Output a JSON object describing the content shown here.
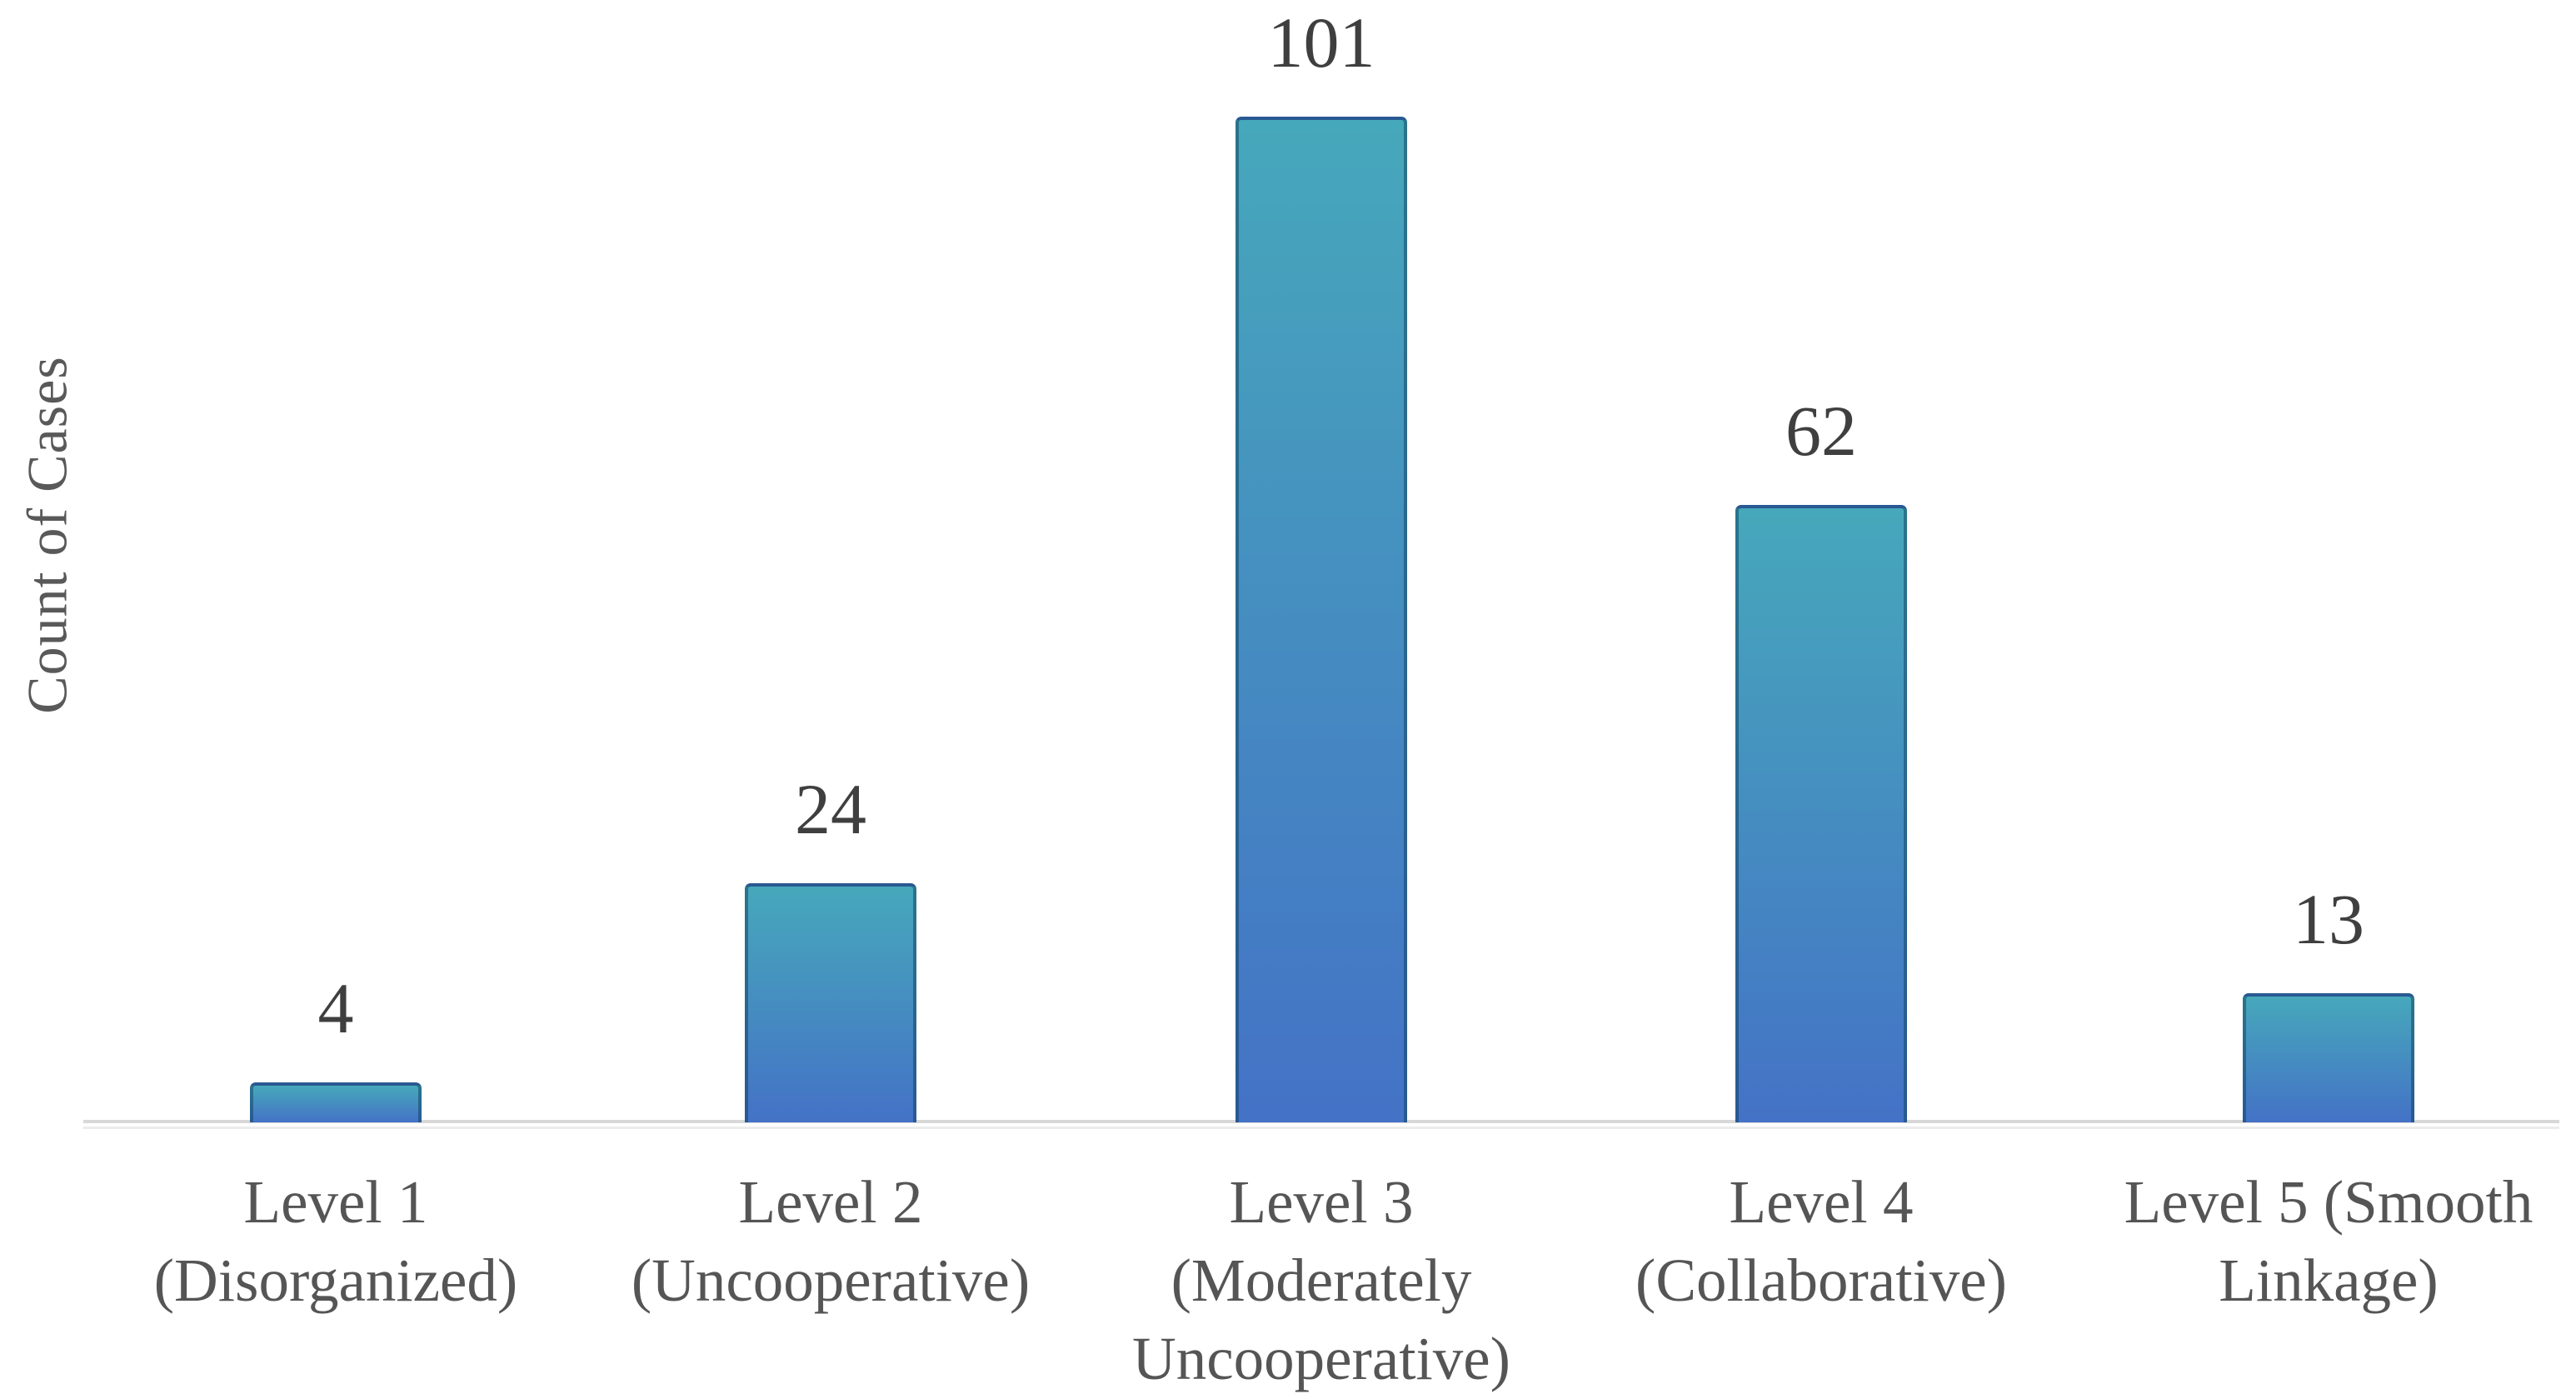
{
  "chart_data": {
    "type": "bar",
    "title": "",
    "xlabel": "",
    "ylabel": "Count of Cases",
    "ylim": [
      0,
      110
    ],
    "grid": false,
    "legend": false,
    "data_labels_shown": true,
    "y_axis_ticks_shown": false,
    "categories": [
      "Level 1 (Disorganized)",
      "Level 2 (Uncooperative)",
      "Level 3 (Moderately Uncooperative)",
      "Level 4 (Collaborative)",
      "Level 5 (Smooth Linkage)"
    ],
    "values": [
      4,
      24,
      101,
      62,
      13
    ],
    "bars": [
      {
        "value": 4,
        "value_label": "4",
        "label_lines": [
          "Level 1",
          "(Disorganized)"
        ]
      },
      {
        "value": 24,
        "value_label": "24",
        "label_lines": [
          "Level 2",
          "(Uncooperative)"
        ]
      },
      {
        "value": 101,
        "value_label": "101",
        "label_lines": [
          "Level 3",
          "(Moderately",
          "Uncooperative)"
        ]
      },
      {
        "value": 62,
        "value_label": "62",
        "label_lines": [
          "Level 4",
          "(Collaborative)"
        ]
      },
      {
        "value": 13,
        "value_label": "13",
        "label_lines": [
          "Level 5 (Smooth",
          "Linkage)"
        ]
      }
    ]
  },
  "colors": {
    "background": "#FFFFFF",
    "bar_gradient_top": "#46A8BB",
    "bar_gradient_bottom": "#4472C6",
    "bar_border": "rgba(15,65,95,0.5)",
    "axis_line": "#D8D8D8",
    "axis_line_secondary": "#ECECEC",
    "value_label_text": "#3F3F3F",
    "category_label_text": "#555555",
    "y_axis_label_text": "#595959"
  }
}
